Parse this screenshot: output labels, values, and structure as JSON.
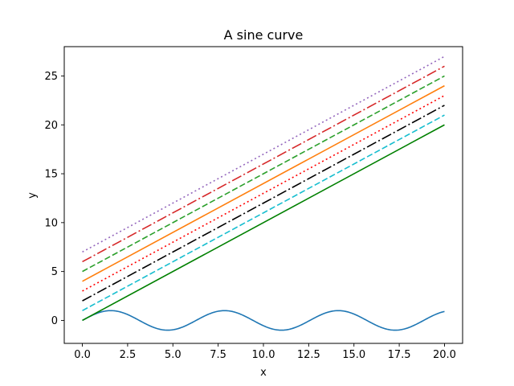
{
  "chart_data": {
    "type": "line",
    "title": "A sine curve",
    "xlabel": "x",
    "ylabel": "y",
    "xlim": [
      -1,
      21
    ],
    "ylim": [
      -2.35,
      28.0
    ],
    "xticks": [
      0.0,
      2.5,
      5.0,
      7.5,
      10.0,
      12.5,
      15.0,
      17.5,
      20.0
    ],
    "xtick_labels": [
      "0.0",
      "2.5",
      "5.0",
      "7.5",
      "10.0",
      "12.5",
      "15.0",
      "17.5",
      "20.0"
    ],
    "yticks": [
      0,
      5,
      10,
      15,
      20,
      25
    ],
    "ytick_labels": [
      "0",
      "5",
      "10",
      "15",
      "20",
      "25"
    ],
    "grid": false,
    "sine_series": {
      "color": "#1f77b4",
      "style": "solid",
      "x_range": [
        0,
        20
      ],
      "function": "sin(x)"
    },
    "series": [
      {
        "color": "#008000",
        "style": "solid",
        "x": [
          0,
          20
        ],
        "y": [
          0,
          20
        ]
      },
      {
        "color": "#17becf",
        "style": "dashed",
        "x": [
          0,
          20
        ],
        "y": [
          1,
          21
        ]
      },
      {
        "color": "#000000",
        "style": "dashdot",
        "x": [
          0,
          20
        ],
        "y": [
          2,
          22
        ]
      },
      {
        "color": "#ff0000",
        "style": "dotted",
        "x": [
          0,
          20
        ],
        "y": [
          3,
          23
        ]
      },
      {
        "color": "#ff7f0e",
        "style": "solid",
        "x": [
          0,
          20
        ],
        "y": [
          4,
          24
        ]
      },
      {
        "color": "#2ca02c",
        "style": "dashed",
        "x": [
          0,
          20
        ],
        "y": [
          5,
          25
        ]
      },
      {
        "color": "#d62728",
        "style": "dashdot",
        "x": [
          0,
          20
        ],
        "y": [
          6,
          26
        ]
      },
      {
        "color": "#9467bd",
        "style": "dotted",
        "x": [
          0,
          20
        ],
        "y": [
          7,
          27
        ]
      }
    ]
  }
}
